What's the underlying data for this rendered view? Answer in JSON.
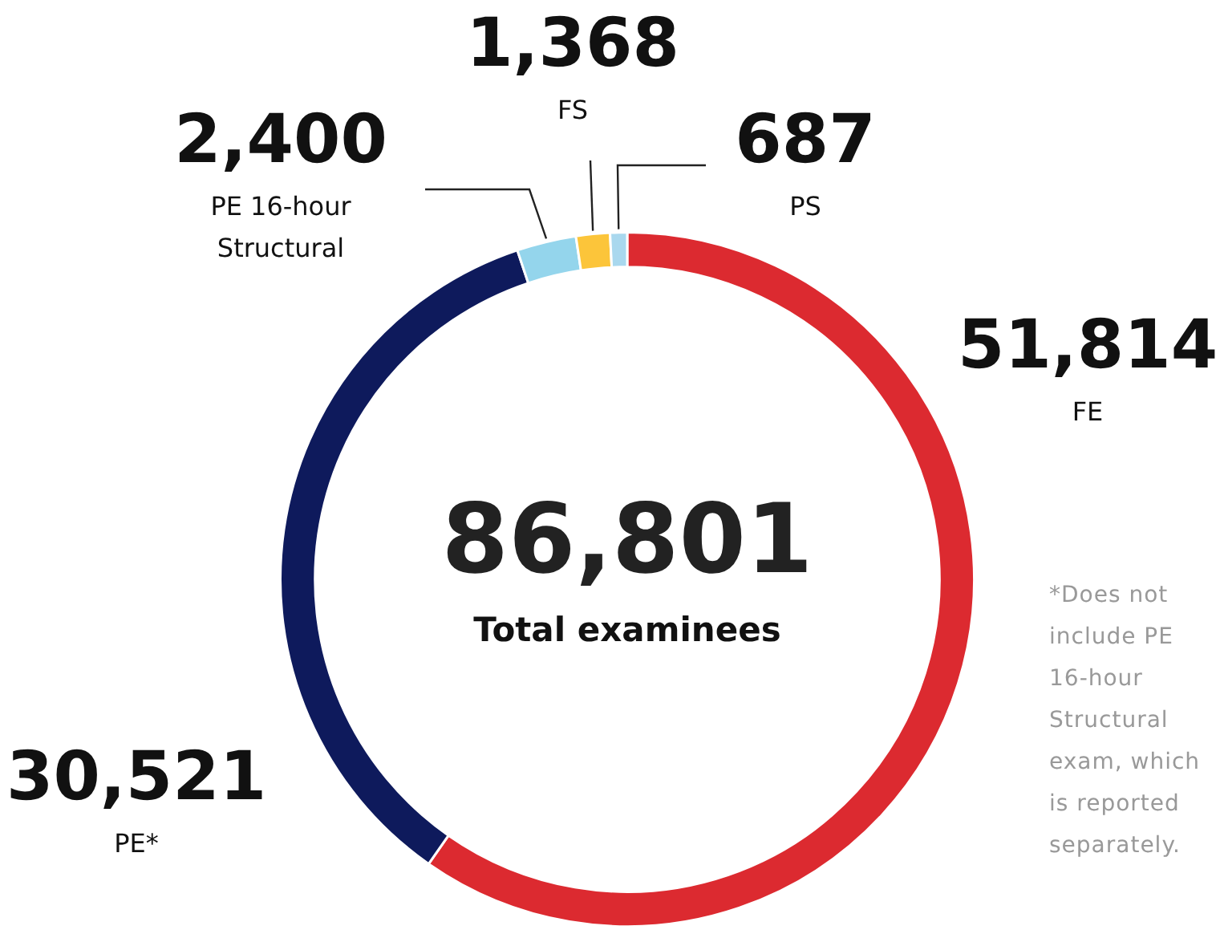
{
  "chart_data": {
    "type": "donut",
    "categories": [
      "FE",
      "PE*",
      "PE 16-hour Structural",
      "FS",
      "PS"
    ],
    "values": [
      51814,
      30521,
      2400,
      1368,
      687
    ],
    "colors": [
      "#dc2a30",
      "#0e1a5c",
      "#94d5ec",
      "#fcc53a",
      "#a9d8ee"
    ],
    "value_labels": [
      "51,814",
      "30,521",
      "2,400",
      "1,368",
      "687"
    ],
    "annotations": [
      "86,801",
      "Total examinees",
      "*Does not include PE 16-hour Structural exam, which is reported separately."
    ],
    "legend": false
  }
}
